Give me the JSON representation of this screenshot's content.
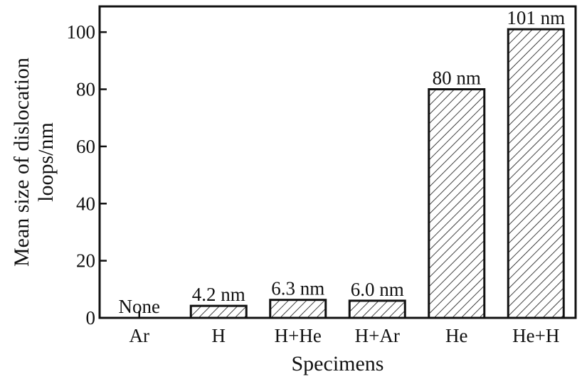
{
  "chart_data": {
    "type": "bar",
    "categories": [
      "Ar",
      "H",
      "H+He",
      "H+Ar",
      "He",
      "He+H"
    ],
    "values": [
      0,
      4.2,
      6.3,
      6.0,
      80,
      101
    ],
    "data_labels": [
      "None",
      "4.2 nm",
      "6.3 nm",
      "6.0 nm",
      "80 nm",
      "101 nm"
    ],
    "title": "",
    "xlabel": "Specimens",
    "ylabel_lines": [
      "Mean size of dislocation",
      "loops/nm"
    ],
    "ylim": [
      0,
      109
    ],
    "yticks": [
      0,
      20,
      40,
      60,
      80,
      100
    ],
    "grid": false,
    "bar_pattern": "diagonal-hatch",
    "colors": {
      "stroke": "#111111",
      "background": "#ffffff"
    }
  }
}
